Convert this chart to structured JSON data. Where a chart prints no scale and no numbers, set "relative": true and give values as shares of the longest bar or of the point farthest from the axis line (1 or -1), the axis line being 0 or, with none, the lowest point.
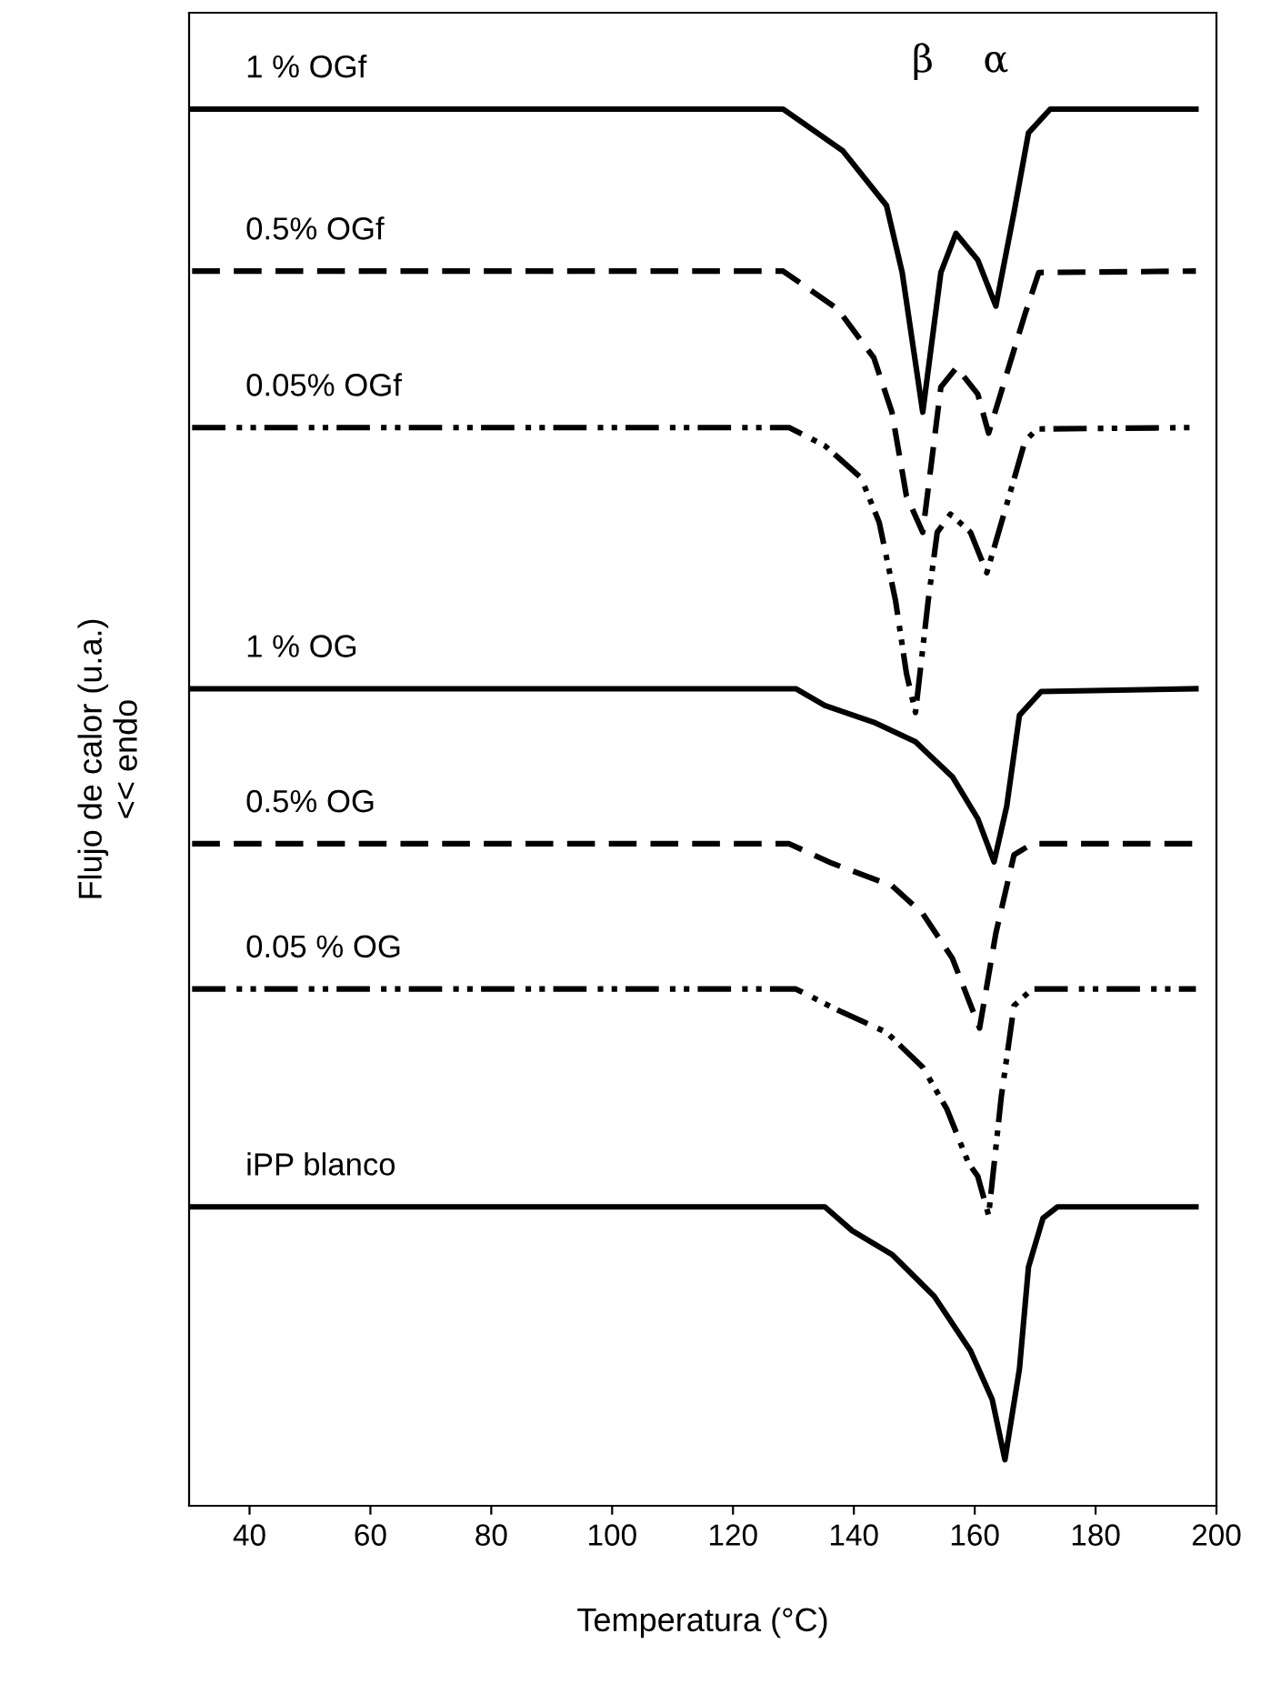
{
  "chart_data": {
    "type": "line",
    "relative": true,
    "xlabel": "Temperatura (°C)",
    "ylabel": "Flujo de calor (u.a.)\n<< endo",
    "xlim": [
      30,
      200
    ],
    "xticks": [
      40,
      60,
      80,
      100,
      120,
      140,
      160,
      180,
      200
    ],
    "tick_labels": "x",
    "grid": false,
    "legend": false,
    "marker": "none",
    "annotations": [
      "β",
      "α"
    ],
    "series": [
      {
        "name": "1 % OGf",
        "color": "#000000",
        "line_style": "solid",
        "x": [
          30.5,
          128.3,
          138.2,
          145.4,
          148,
          151.4,
          154.4,
          156.9,
          160.5,
          163.5,
          166.5,
          168.9,
          172.5,
          196.6
        ],
        "values": [
          1.0,
          1.0,
          0.97,
          0.931,
          0.883,
          0.783,
          0.883,
          0.911,
          0.892,
          0.859,
          0.926,
          0.983,
          1.0,
          1.0
        ]
      },
      {
        "name": "0.5% OGf",
        "color": "#000000",
        "line_style": "dashed",
        "x": [
          30.5,
          128.3,
          137.3,
          143.3,
          146.3,
          148.7,
          151.4,
          154.4,
          157,
          160.5,
          162.3,
          168.3,
          170.6,
          196.6
        ],
        "values": [
          0.884,
          0.884,
          0.857,
          0.822,
          0.783,
          0.723,
          0.697,
          0.801,
          0.815,
          0.796,
          0.768,
          0.853,
          0.883,
          0.884
        ]
      },
      {
        "name": "0.05% OGf",
        "color": "#000000",
        "line_style": "dashdot",
        "x": [
          30.5,
          129.3,
          135.2,
          141.2,
          144.2,
          146.9,
          148.7,
          150.2,
          152.3,
          153.8,
          156,
          159.3,
          162,
          165.3,
          168.3,
          170.3,
          196.6
        ],
        "values": [
          0.772,
          0.772,
          0.759,
          0.736,
          0.704,
          0.648,
          0.596,
          0.568,
          0.648,
          0.697,
          0.71,
          0.697,
          0.668,
          0.717,
          0.762,
          0.771,
          0.772
        ]
      },
      {
        "name": "1 % OG",
        "color": "#000000",
        "line_style": "solid",
        "x": [
          30.5,
          130.4,
          135.2,
          143.3,
          150.2,
          156.3,
          160.5,
          163.2,
          165.3,
          167.4,
          171,
          196.6
        ],
        "values": [
          0.585,
          0.585,
          0.573,
          0.561,
          0.547,
          0.522,
          0.492,
          0.461,
          0.501,
          0.566,
          0.583,
          0.585
        ]
      },
      {
        "name": "0.5% OG",
        "color": "#000000",
        "line_style": "dashed",
        "x": [
          30.5,
          129.3,
          136.4,
          146.3,
          151.4,
          156.3,
          159,
          160.8,
          163.5,
          166.5,
          169.5,
          196.6
        ],
        "values": [
          0.474,
          0.474,
          0.46,
          0.444,
          0.424,
          0.392,
          0.362,
          0.342,
          0.41,
          0.466,
          0.474,
          0.474
        ]
      },
      {
        "name": "0.05 % OG",
        "color": "#000000",
        "line_style": "dashdot",
        "x": [
          30.5,
          130.4,
          137.3,
          145.4,
          151.4,
          155.4,
          159,
          160.5,
          162.3,
          164.4,
          166.5,
          169.5,
          196.6
        ],
        "values": [
          0.37,
          0.37,
          0.355,
          0.339,
          0.314,
          0.284,
          0.245,
          0.236,
          0.208,
          0.293,
          0.358,
          0.37,
          0.37
        ]
      },
      {
        "name": "iPP blanco",
        "color": "#000000",
        "line_style": "solid",
        "x": [
          30.5,
          135.2,
          139.7,
          146.3,
          153.3,
          159.3,
          162.9,
          165,
          167.4,
          168.9,
          171.3,
          173.7,
          196.6
        ],
        "values": [
          0.214,
          0.214,
          0.197,
          0.18,
          0.15,
          0.111,
          0.076,
          0.033,
          0.098,
          0.171,
          0.206,
          0.214,
          0.214
        ]
      }
    ]
  }
}
